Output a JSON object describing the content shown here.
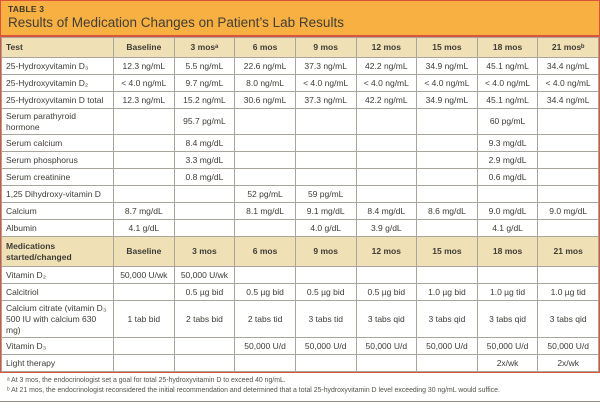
{
  "header": {
    "table_label": "TABLE 3",
    "title": "Results of Medication Changes on Patient’s Lab Results"
  },
  "columns": [
    "Test",
    "Baseline",
    "3 mosᵃ",
    "6 mos",
    "9 mos",
    "12 mos",
    "15 mos",
    "18 mos",
    "21 mosᵇ"
  ],
  "lab_rows": [
    {
      "label": "25-Hydroxyvitamin D₃",
      "values": [
        "12.3 ng/mL",
        "5.5 ng/mL",
        "22.6 ng/mL",
        "37.3 ng/mL",
        "42.2 ng/mL",
        "34.9 ng/mL",
        "45.1 ng/mL",
        "34.4 ng/mL"
      ]
    },
    {
      "label": "25-Hydroxyvitamin D₂",
      "values": [
        "< 4.0 ng/mL",
        "9.7 ng/mL",
        "8.0 ng/mL",
        "< 4.0 ng/mL",
        "< 4.0 ng/mL",
        "< 4.0 ng/mL",
        "< 4.0 ng/mL",
        "< 4.0 ng/mL"
      ]
    },
    {
      "label": "25-Hydroxyvitamin D total",
      "values": [
        "12.3 ng/mL",
        "15.2 ng/mL",
        "30.6 ng/mL",
        "37.3 ng/mL",
        "42.2 ng/mL",
        "34.9 ng/mL",
        "45.1 ng/mL",
        "34.4 ng/mL"
      ]
    },
    {
      "label": "Serum parathyroid hormone",
      "values": [
        "",
        "95.7 pg/mL",
        "",
        "",
        "",
        "",
        "60 pg/mL",
        ""
      ]
    },
    {
      "label": "Serum calcium",
      "values": [
        "",
        "8.4 mg/dL",
        "",
        "",
        "",
        "",
        "9.3 mg/dL",
        ""
      ]
    },
    {
      "label": "Serum phosphorus",
      "values": [
        "",
        "3.3 mg/dL",
        "",
        "",
        "",
        "",
        "2.9 mg/dL",
        ""
      ]
    },
    {
      "label": "Serum creatinine",
      "values": [
        "",
        "0.8 mg/dL",
        "",
        "",
        "",
        "",
        "0.6 mg/dL",
        ""
      ]
    },
    {
      "label": "1,25 Dihydroxy-vitamin D",
      "values": [
        "",
        "",
        "52 pg/mL",
        "59 pg/mL",
        "",
        "",
        "",
        ""
      ]
    },
    {
      "label": "Calcium",
      "values": [
        "8.7 mg/dL",
        "",
        "8.1 mg/dL",
        "9.1 mg/dL",
        "8.4 mg/dL",
        "8.6 mg/dL",
        "9.0 mg/dL",
        "9.0 mg/dL"
      ]
    },
    {
      "label": "Albumin",
      "values": [
        "4.1 g/dL",
        "",
        "",
        "4.0 g/dL",
        "3.9 g/dL",
        "",
        "4.1 g/dL",
        ""
      ]
    }
  ],
  "med_section": {
    "label": "Medications started/changed",
    "columns": [
      "Baseline",
      "3 mos",
      "6 mos",
      "9 mos",
      "12 mos",
      "15 mos",
      "18 mos",
      "21 mos"
    ]
  },
  "med_rows": [
    {
      "label": "Vitamin D₂",
      "values": [
        "50,000 U/wk",
        "50,000 U/wk",
        "",
        "",
        "",
        "",
        "",
        ""
      ]
    },
    {
      "label": "Calcitriol",
      "values": [
        "",
        "0.5 µg bid",
        "0.5 µg bid",
        "0.5 µg bid",
        "0.5 µg bid",
        "1.0 µg bid",
        "1.0 µg tid",
        "1.0 µg tid"
      ]
    },
    {
      "label": "Calcium citrate (vitamin D₃ 500 IU with calcium 630 mg)",
      "values": [
        "1 tab bid",
        "2 tabs bid",
        "2 tabs tid",
        "3 tabs tid",
        "3 tabs qid",
        "3 tabs qid",
        "3 tabs qid",
        "3 tabs qid"
      ]
    },
    {
      "label": "Vitamin D₃",
      "values": [
        "",
        "",
        "50,000 U/d",
        "50,000 U/d",
        "50,000 U/d",
        "50,000 U/d",
        "50,000 U/d",
        "50,000 U/d"
      ]
    },
    {
      "label": "Light therapy",
      "values": [
        "",
        "",
        "",
        "",
        "",
        "",
        "2x/wk",
        "2x/wk"
      ]
    }
  ],
  "footnotes": [
    "ᵃ At 3 mos, the endocrinologist set a goal for total 25-hydroxyvitamin D to exceed 40 ng/mL.",
    "ᵇ At 21 mos, the endocrinologist reconsidered the initial recommendation and determined that a total 25-hydroxyvitamin D level exceeding 30 ng/mL would suffice."
  ],
  "colors": {
    "header_bg": "#F8B043",
    "band_bg": "#F0E0B6",
    "frame": "#D9543B",
    "grid": "#A9A49C"
  }
}
